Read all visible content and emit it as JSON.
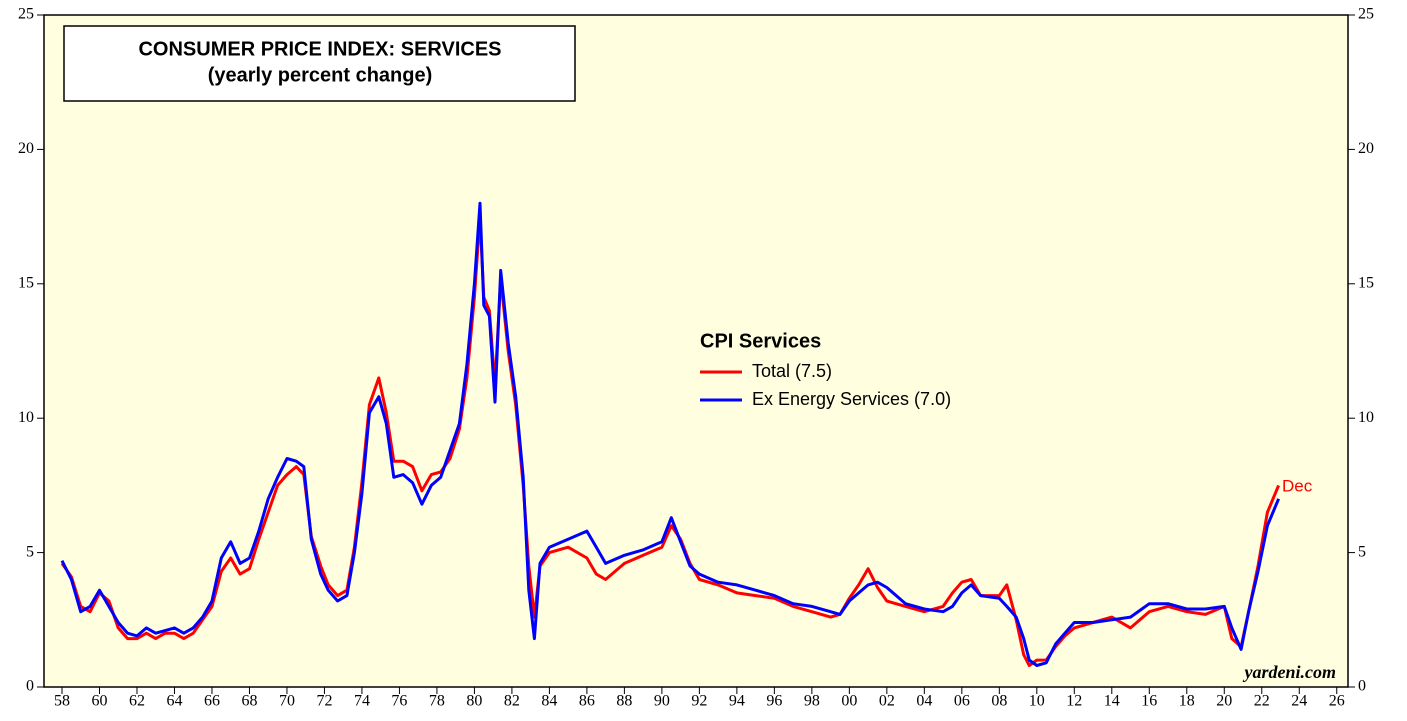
{
  "chart_data": {
    "type": "line",
    "title": "CONSUMER PRICE INDEX: SERVICES",
    "subtitle": "(yearly percent change)",
    "legend_title": "CPI Services",
    "annotation": "Dec",
    "source": "yardeni.com",
    "x": [
      1958,
      1958.5,
      1959,
      1959.5,
      1960,
      1960.5,
      1961,
      1961.5,
      1962,
      1962.5,
      1963,
      1963.5,
      1964,
      1964.5,
      1965,
      1965.5,
      1966,
      1966.5,
      1967,
      1967.5,
      1968,
      1968.5,
      1969,
      1969.5,
      1970,
      1970.5,
      1970.9,
      1971.3,
      1971.8,
      1972.2,
      1972.7,
      1973.2,
      1973.6,
      1974,
      1974.4,
      1974.9,
      1975.3,
      1975.7,
      1976.2,
      1976.7,
      1977.2,
      1977.7,
      1978.2,
      1978.7,
      1979.2,
      1979.6,
      1980,
      1980.3,
      1980.5,
      1980.8,
      1981.1,
      1981.4,
      1981.8,
      1982.2,
      1982.6,
      1982.9,
      1983.2,
      1983.5,
      1984,
      1985,
      1986,
      1986.5,
      1987,
      1988,
      1989,
      1990,
      1990.5,
      1991,
      1991.5,
      1992,
      1993,
      1994,
      1995,
      1996,
      1997,
      1998,
      1999,
      1999.5,
      2000,
      2000.5,
      2001,
      2001.5,
      2002,
      2003,
      2004,
      2005,
      2005.5,
      2006,
      2006.5,
      2007,
      2008,
      2008.4,
      2008.9,
      2009.3,
      2009.6,
      2010,
      2010.5,
      2011,
      2011.5,
      2012,
      2013,
      2014,
      2015,
      2016,
      2017,
      2018,
      2019,
      2020,
      2020.4,
      2020.9,
      2021.3,
      2021.8,
      2022.3,
      2022.9
    ],
    "series": [
      {
        "name": "Total (7.5)",
        "color": "#ff0000",
        "values": [
          4.6,
          4.1,
          3.0,
          2.8,
          3.5,
          3.2,
          2.2,
          1.8,
          1.8,
          2.0,
          1.8,
          2.0,
          2.0,
          1.8,
          2.0,
          2.5,
          3.0,
          4.3,
          4.8,
          4.2,
          4.4,
          5.5,
          6.5,
          7.5,
          7.9,
          8.2,
          7.9,
          5.6,
          4.5,
          3.8,
          3.4,
          3.6,
          5.2,
          7.6,
          10.5,
          11.5,
          10.2,
          8.4,
          8.4,
          8.2,
          7.3,
          7.9,
          8.0,
          8.5,
          9.6,
          11.5,
          14.5,
          17.5,
          14.5,
          14.0,
          11.2,
          15.2,
          12.5,
          10.5,
          7.5,
          4.5,
          2.6,
          4.5,
          5.0,
          5.2,
          4.8,
          4.2,
          4.0,
          4.6,
          4.9,
          5.2,
          6.0,
          5.5,
          4.6,
          4.0,
          3.8,
          3.5,
          3.4,
          3.3,
          3.0,
          2.8,
          2.6,
          2.7,
          3.3,
          3.8,
          4.4,
          3.7,
          3.2,
          3.0,
          2.8,
          3.0,
          3.5,
          3.9,
          4.0,
          3.4,
          3.4,
          3.8,
          2.5,
          1.2,
          0.8,
          1.0,
          1.0,
          1.5,
          1.9,
          2.2,
          2.4,
          2.6,
          2.2,
          2.8,
          3.0,
          2.8,
          2.7,
          3.0,
          1.8,
          1.5,
          2.8,
          4.5,
          6.5,
          7.5
        ]
      },
      {
        "name": "Ex Energy Services (7.0)",
        "color": "#0000ff",
        "values": [
          4.7,
          4.0,
          2.8,
          3.0,
          3.6,
          3.0,
          2.4,
          2.0,
          1.9,
          2.2,
          2.0,
          2.1,
          2.2,
          2.0,
          2.2,
          2.6,
          3.2,
          4.8,
          5.4,
          4.6,
          4.8,
          5.8,
          7.0,
          7.8,
          8.5,
          8.4,
          8.2,
          5.5,
          4.2,
          3.6,
          3.2,
          3.4,
          5.0,
          7.2,
          10.2,
          10.8,
          9.8,
          7.8,
          7.9,
          7.6,
          6.8,
          7.5,
          7.8,
          8.8,
          9.8,
          12.0,
          15.0,
          18.0,
          14.2,
          13.8,
          10.6,
          15.5,
          12.8,
          10.8,
          7.8,
          3.6,
          1.8,
          4.6,
          5.2,
          5.5,
          5.8,
          5.2,
          4.6,
          4.9,
          5.1,
          5.4,
          6.3,
          5.4,
          4.5,
          4.2,
          3.9,
          3.8,
          3.6,
          3.4,
          3.1,
          3.0,
          2.8,
          2.7,
          3.2,
          3.5,
          3.8,
          3.9,
          3.7,
          3.1,
          2.9,
          2.8,
          3.0,
          3.5,
          3.8,
          3.4,
          3.3,
          3.0,
          2.6,
          1.8,
          1.0,
          0.8,
          0.9,
          1.6,
          2.0,
          2.4,
          2.4,
          2.5,
          2.6,
          3.1,
          3.1,
          2.9,
          2.9,
          3.0,
          2.2,
          1.4,
          2.8,
          4.3,
          6.0,
          7.0
        ]
      }
    ],
    "xlim": [
      1957.04,
      2026.6
    ],
    "xticks": [
      {
        "value": 1958,
        "label": "58"
      },
      {
        "value": 1960,
        "label": "60"
      },
      {
        "value": 1962,
        "label": "62"
      },
      {
        "value": 1964,
        "label": "64"
      },
      {
        "value": 1966,
        "label": "66"
      },
      {
        "value": 1968,
        "label": "68"
      },
      {
        "value": 1970,
        "label": "70"
      },
      {
        "value": 1972,
        "label": "72"
      },
      {
        "value": 1974,
        "label": "74"
      },
      {
        "value": 1976,
        "label": "76"
      },
      {
        "value": 1978,
        "label": "78"
      },
      {
        "value": 1980,
        "label": "80"
      },
      {
        "value": 1982,
        "label": "82"
      },
      {
        "value": 1984,
        "label": "84"
      },
      {
        "value": 1986,
        "label": "86"
      },
      {
        "value": 1988,
        "label": "88"
      },
      {
        "value": 1990,
        "label": "90"
      },
      {
        "value": 1992,
        "label": "92"
      },
      {
        "value": 1994,
        "label": "94"
      },
      {
        "value": 1996,
        "label": "96"
      },
      {
        "value": 1998,
        "label": "98"
      },
      {
        "value": 2000,
        "label": "00"
      },
      {
        "value": 2002,
        "label": "02"
      },
      {
        "value": 2004,
        "label": "04"
      },
      {
        "value": 2006,
        "label": "06"
      },
      {
        "value": 2008,
        "label": "08"
      },
      {
        "value": 2010,
        "label": "10"
      },
      {
        "value": 2012,
        "label": "12"
      },
      {
        "value": 2014,
        "label": "14"
      },
      {
        "value": 2016,
        "label": "16"
      },
      {
        "value": 2018,
        "label": "18"
      },
      {
        "value": 2020,
        "label": "20"
      },
      {
        "value": 2022,
        "label": "22"
      },
      {
        "value": 2024,
        "label": "24"
      },
      {
        "value": 2026,
        "label": "26"
      }
    ],
    "ylim": [
      0,
      25
    ],
    "yticks": [
      0,
      5,
      10,
      15,
      20,
      25
    ],
    "y2lim": [
      0,
      25
    ],
    "y2ticks": [
      0,
      5,
      10,
      15,
      20,
      25
    ]
  }
}
